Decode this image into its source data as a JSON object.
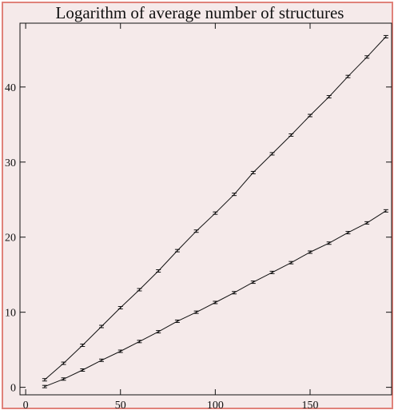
{
  "chart_data": {
    "type": "line",
    "title": "Logarithm of average number of structures",
    "xlabel": "",
    "ylabel": "",
    "xlim": [
      -3,
      193
    ],
    "ylim": [
      -1,
      48.5
    ],
    "xticks": [
      0,
      50,
      100,
      150
    ],
    "yticks": [
      0,
      10,
      20,
      30,
      40
    ],
    "grid": false,
    "error_bars": true,
    "series": [
      {
        "x": [
          10,
          20,
          30,
          40,
          50,
          60,
          70,
          80,
          90,
          100,
          110,
          120,
          130,
          140,
          150,
          160,
          170,
          180,
          190
        ],
        "y": [
          1.0,
          3.2,
          5.6,
          8.1,
          10.6,
          13.0,
          15.5,
          18.2,
          20.8,
          23.2,
          25.7,
          28.6,
          31.1,
          33.6,
          36.2,
          38.7,
          41.4,
          44.0,
          46.7
        ]
      },
      {
        "x": [
          10,
          20,
          30,
          40,
          50,
          60,
          70,
          80,
          90,
          100,
          110,
          120,
          130,
          140,
          150,
          160,
          170,
          180,
          190
        ],
        "y": [
          0.1,
          1.1,
          2.3,
          3.6,
          4.8,
          6.1,
          7.4,
          8.8,
          10.0,
          11.3,
          12.6,
          14.0,
          15.3,
          16.6,
          18.0,
          19.2,
          20.6,
          21.9,
          23.5
        ]
      }
    ]
  }
}
